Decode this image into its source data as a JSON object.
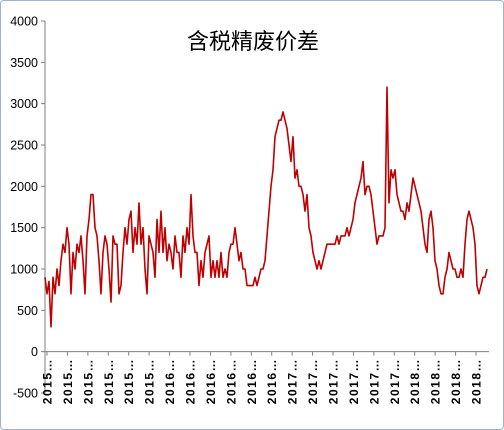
{
  "chart_data": {
    "type": "line",
    "title": "含税精废价差",
    "xlabel": "",
    "ylabel": "",
    "ylim": [
      -500,
      4000
    ],
    "grid": false,
    "legend": "none",
    "y_tick_labels": [
      "4000",
      "3500",
      "3000",
      "2500",
      "2000",
      "1500",
      "1000",
      "500",
      "0",
      "-500"
    ],
    "x_tick_labels": [
      "2015…",
      "2015…",
      "2015…",
      "2015…",
      "2015…",
      "2015…",
      "2016…",
      "2016…",
      "2016…",
      "2016…",
      "2016…",
      "2016…",
      "2017…",
      "2017…",
      "2017…",
      "2017…",
      "2017…",
      "2017…",
      "2018…",
      "2018…",
      "2018…",
      "2018…"
    ],
    "series": [
      {
        "color": "#C00000",
        "values": [
          900,
          700,
          850,
          300,
          900,
          700,
          1000,
          800,
          1100,
          1300,
          1200,
          1500,
          1300,
          700,
          1200,
          1000,
          1300,
          1200,
          1400,
          1100,
          700,
          1400,
          1600,
          1900,
          1900,
          1500,
          1400,
          1100,
          700,
          1200,
          1400,
          1300,
          1000,
          600,
          1400,
          1300,
          1300,
          700,
          800,
          1200,
          1500,
          1300,
          1600,
          1700,
          1200,
          1500,
          1300,
          1800,
          1300,
          1500,
          1000,
          700,
          1400,
          1300,
          1200,
          900,
          1600,
          1200,
          1700,
          1200,
          1500,
          1100,
          1300,
          1200,
          1000,
          1400,
          1200,
          1200,
          900,
          1400,
          1200,
          1500,
          1300,
          1900,
          1400,
          1200,
          1200,
          800,
          1100,
          900,
          1200,
          1300,
          1400,
          900,
          1100,
          900,
          1100,
          900,
          1200,
          900,
          1000,
          900,
          1200,
          1300,
          1300,
          1500,
          1300,
          1100,
          1200,
          1000,
          1000,
          800,
          800,
          800,
          800,
          900,
          800,
          900,
          1000,
          1000,
          1100,
          1400,
          1700,
          2000,
          2200,
          2600,
          2700,
          2800,
          2800,
          2900,
          2800,
          2700,
          2500,
          2300,
          2600,
          2100,
          2200,
          2000,
          2000,
          1900,
          1700,
          1900,
          1500,
          1400,
          1200,
          1100,
          1000,
          1100,
          1000,
          1100,
          1200,
          1300,
          1300,
          1300,
          1300,
          1300,
          1400,
          1300,
          1400,
          1400,
          1400,
          1500,
          1400,
          1500,
          1600,
          1800,
          1900,
          2000,
          2100,
          2300,
          1900,
          2000,
          2000,
          1900,
          1700,
          1500,
          1300,
          1400,
          1400,
          1400,
          1500,
          3200,
          1800,
          2200,
          2100,
          2200,
          1900,
          1800,
          1700,
          1700,
          1600,
          1800,
          1700,
          1900,
          2100,
          2000,
          1900,
          1800,
          1700,
          1500,
          1300,
          1200,
          1600,
          1700,
          1500,
          1100,
          1000,
          800,
          700,
          700,
          900,
          1000,
          1200,
          1100,
          1000,
          1000,
          900,
          900,
          1000,
          900,
          1300,
          1600,
          1700,
          1600,
          1500,
          1300,
          800,
          700,
          800,
          900,
          900,
          1000
        ]
      }
    ]
  }
}
